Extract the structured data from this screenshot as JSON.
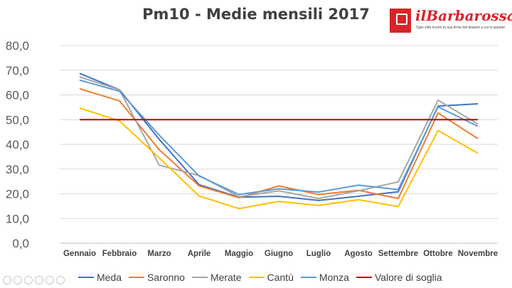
{
  "title": "Pm10  - Medie mensili 2017",
  "logo": {
    "name": "ilBarbarossa",
    "tagline": "Ogni città ricorre la sua firma dal deserto a cui si oppone",
    "icon": "barbarossa-logo-icon",
    "color": "#d8232a"
  },
  "chart_data": {
    "type": "line",
    "title": "Pm10  - Medie mensili 2017",
    "categories": [
      "Gennaio",
      "Febbraio",
      "Marzo",
      "Aprile",
      "Maggio",
      "Giugno",
      "Luglio",
      "Agosto",
      "Settembre",
      "Ottobre",
      "Novembre"
    ],
    "y_ticks": [
      "0,0",
      "10,0",
      "20,0",
      "30,0",
      "40,0",
      "50,0",
      "60,0",
      "70,0",
      "80,0"
    ],
    "ylim": [
      0,
      80
    ],
    "grid": true,
    "legend_position": "bottom",
    "series": [
      {
        "name": "Meda",
        "color": "#4472c4",
        "values": [
          68.7,
          62.1,
          42.0,
          23.7,
          18.6,
          19.0,
          17.3,
          19.0,
          20.8,
          55.5,
          56.4
        ]
      },
      {
        "name": "Saronno",
        "color": "#ed7d31",
        "values": [
          62.5,
          57.6,
          37.8,
          23.2,
          18.4,
          23.2,
          19.7,
          21.4,
          18.1,
          52.7,
          42.3
        ]
      },
      {
        "name": "Merate",
        "color": "#a5a5a5",
        "values": [
          67.3,
          62.1,
          31.6,
          27.4,
          18.8,
          21.2,
          18.1,
          21.2,
          24.8,
          57.9,
          48.2
        ]
      },
      {
        "name": "Cantù",
        "color": "#ffc000",
        "values": [
          54.7,
          49.5,
          34.5,
          19.1,
          14.0,
          16.9,
          15.3,
          17.6,
          14.8,
          45.6,
          36.4
        ]
      },
      {
        "name": "Monza",
        "color": "#5b9bd5",
        "values": [
          66.0,
          61.5,
          43.7,
          27.2,
          19.7,
          22.0,
          20.7,
          23.5,
          21.7,
          55.2,
          47.3
        ]
      },
      {
        "name": "Valore di soglia",
        "color": "#c00000",
        "values": [
          50,
          50,
          50,
          50,
          50,
          50,
          50,
          50,
          50,
          50,
          50
        ]
      }
    ]
  }
}
